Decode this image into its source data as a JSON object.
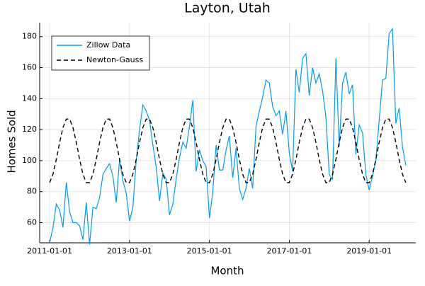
{
  "chart_data": {
    "type": "line",
    "title": "Layton, Utah",
    "xlabel": "Month",
    "ylabel": "Homes Sold",
    "x": [
      "2011-01-01",
      "2011-02-01",
      "2011-03-01",
      "2011-04-01",
      "2011-05-01",
      "2011-06-01",
      "2011-07-01",
      "2011-08-01",
      "2011-09-01",
      "2011-10-01",
      "2011-11-01",
      "2011-12-01",
      "2012-01-01",
      "2012-02-01",
      "2012-03-01",
      "2012-04-01",
      "2012-05-01",
      "2012-06-01",
      "2012-07-01",
      "2012-08-01",
      "2012-09-01",
      "2012-10-01",
      "2012-11-01",
      "2012-12-01",
      "2013-01-01",
      "2013-02-01",
      "2013-03-01",
      "2013-04-01",
      "2013-05-01",
      "2013-06-01",
      "2013-07-01",
      "2013-08-01",
      "2013-09-01",
      "2013-10-01",
      "2013-11-01",
      "2013-12-01",
      "2014-01-01",
      "2014-02-01",
      "2014-03-01",
      "2014-04-01",
      "2014-05-01",
      "2014-06-01",
      "2014-07-01",
      "2014-08-01",
      "2014-09-01",
      "2014-10-01",
      "2014-11-01",
      "2014-12-01",
      "2015-01-01",
      "2015-02-01",
      "2015-03-01",
      "2015-04-01",
      "2015-05-01",
      "2015-06-01",
      "2015-07-01",
      "2015-08-01",
      "2015-09-01",
      "2015-10-01",
      "2015-11-01",
      "2015-12-01",
      "2016-01-01",
      "2016-02-01",
      "2016-03-01",
      "2016-04-01",
      "2016-05-01",
      "2016-06-01",
      "2016-07-01",
      "2016-08-01",
      "2016-09-01",
      "2016-10-01",
      "2016-11-01",
      "2016-12-01",
      "2017-01-01",
      "2017-02-01",
      "2017-03-01",
      "2017-04-01",
      "2017-05-01",
      "2017-06-01",
      "2017-07-01",
      "2017-08-01",
      "2017-09-01",
      "2017-10-01",
      "2017-11-01",
      "2017-12-01",
      "2018-01-01",
      "2018-02-01",
      "2018-03-01",
      "2018-04-01",
      "2018-05-01",
      "2018-06-01",
      "2018-07-01",
      "2018-08-01",
      "2018-09-01",
      "2018-10-01",
      "2018-11-01",
      "2018-12-01",
      "2019-01-01",
      "2019-02-01",
      "2019-03-01",
      "2019-04-01",
      "2019-05-01",
      "2019-06-01",
      "2019-07-01",
      "2019-08-01",
      "2019-09-01",
      "2019-10-01",
      "2019-11-01",
      "2019-12-01"
    ],
    "series": [
      {
        "name": "Zillow Data",
        "color": "#009af9",
        "dash": false,
        "values": [
          47,
          57,
          72,
          68,
          57,
          86,
          67,
          60,
          60,
          58,
          49,
          73,
          46,
          70,
          69,
          76,
          91,
          95,
          98,
          90,
          73,
          101,
          87,
          79,
          61,
          70,
          100,
          120,
          136,
          132,
          126,
          110,
          96,
          74,
          92,
          88,
          65,
          72,
          88,
          102,
          112,
          108,
          122,
          139,
          93,
          107,
          100,
          96,
          63,
          80,
          110,
          94,
          94,
          107,
          116,
          89,
          108,
          82,
          75,
          82,
          95,
          82,
          122,
          132,
          141,
          152,
          150,
          135,
          129,
          132,
          117,
          132,
          105,
          93,
          159,
          144,
          166,
          169,
          142,
          160,
          150,
          156,
          145,
          128,
          91,
          88,
          166,
          109,
          150,
          157,
          143,
          149,
          104,
          123,
          118,
          91,
          81,
          90,
          100,
          126,
          152,
          153,
          182,
          185,
          124,
          134,
          109,
          97
        ]
      },
      {
        "name": "Newton-Gauss",
        "color": "#000000",
        "dash": true,
        "values": [
          85.8,
          91.3,
          100.8,
          111.8,
          121.3,
          126.8,
          126.8,
          121.3,
          111.8,
          100.8,
          91.3,
          85.8,
          85.8,
          91.3,
          100.8,
          111.8,
          121.3,
          126.8,
          126.8,
          121.3,
          111.8,
          100.8,
          91.3,
          85.8,
          85.8,
          91.3,
          100.8,
          111.8,
          121.3,
          126.8,
          126.8,
          121.3,
          111.8,
          100.8,
          91.3,
          85.8,
          85.8,
          91.3,
          100.8,
          111.8,
          121.3,
          126.8,
          126.8,
          121.3,
          111.8,
          100.8,
          91.3,
          85.8,
          85.8,
          91.3,
          100.8,
          111.8,
          121.3,
          126.8,
          126.8,
          121.3,
          111.8,
          100.8,
          91.3,
          85.8,
          85.8,
          91.3,
          100.8,
          111.8,
          121.3,
          126.8,
          126.8,
          121.3,
          111.8,
          100.8,
          91.3,
          85.8,
          85.8,
          91.3,
          100.8,
          111.8,
          121.3,
          126.8,
          126.8,
          121.3,
          111.8,
          100.8,
          91.3,
          85.8,
          85.8,
          91.3,
          100.8,
          111.8,
          121.3,
          126.8,
          126.8,
          121.3,
          111.8,
          100.8,
          91.3,
          85.8,
          85.8,
          91.3,
          100.8,
          111.8,
          121.3,
          126.8,
          126.8,
          121.3,
          111.8,
          100.8,
          91.3,
          85.8
        ]
      }
    ],
    "xlim": [
      "2010-10-01",
      "2020-03-01"
    ],
    "xticks": [
      "2011-01-01",
      "2013-01-01",
      "2015-01-01",
      "2017-01-01",
      "2019-01-01"
    ],
    "ylim": [
      47,
      189
    ],
    "yticks": [
      60,
      80,
      100,
      120,
      140,
      160,
      180
    ],
    "grid": true,
    "legend": "top-left"
  }
}
